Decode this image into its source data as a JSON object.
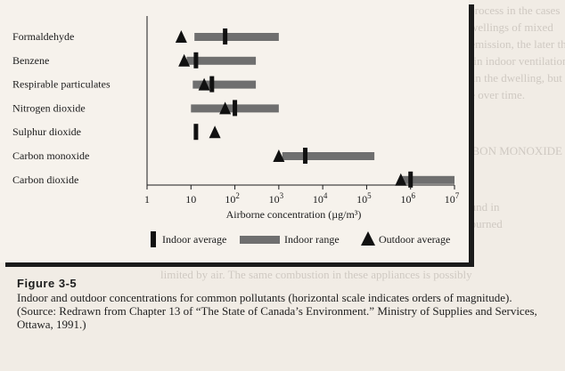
{
  "chart_data": {
    "type": "range-bar",
    "scale": "log",
    "xlabel": "Airborne concentration (µg/m³)",
    "xticks": [
      {
        "value": 1,
        "label": "1"
      },
      {
        "value": 10,
        "label": "10"
      },
      {
        "value": 100,
        "label": "10",
        "exp": "2"
      },
      {
        "value": 1000,
        "label": "10",
        "exp": "3"
      },
      {
        "value": 10000,
        "label": "10",
        "exp": "4"
      },
      {
        "value": 100000,
        "label": "10",
        "exp": "5"
      },
      {
        "value": 1000000,
        "label": "10",
        "exp": "6"
      },
      {
        "value": 10000000,
        "label": "10",
        "exp": "7"
      }
    ],
    "xlim": [
      1,
      10000000
    ],
    "pollutants": [
      {
        "name": "Formaldehyde",
        "indoor_range": [
          12,
          1000
        ],
        "indoor_average": 60,
        "outdoor_average": 6
      },
      {
        "name": "Benzene",
        "indoor_range": [
          8,
          300
        ],
        "indoor_average": 13,
        "outdoor_average": 7
      },
      {
        "name": "Respirable particulates",
        "indoor_range": [
          11,
          300
        ],
        "indoor_average": 30,
        "outdoor_average": 20
      },
      {
        "name": "Nitrogen dioxide",
        "indoor_range": [
          10,
          1000
        ],
        "indoor_average": 100,
        "outdoor_average": 60
      },
      {
        "name": "Sulphur dioxide",
        "indoor_range": null,
        "indoor_average": 13,
        "outdoor_average": 35
      },
      {
        "name": "Carbon monoxide",
        "indoor_range": [
          1200,
          150000
        ],
        "indoor_average": 4000,
        "outdoor_average": 1000
      },
      {
        "name": "Carbon dioxide",
        "indoor_range": [
          600000,
          10000000
        ],
        "indoor_average": 1000000,
        "outdoor_average": 600000
      }
    ],
    "legend": {
      "placement": "bottom",
      "items": [
        {
          "key": "indoor_average",
          "label": "Indoor average"
        },
        {
          "key": "indoor_range",
          "label": "Indoor range"
        },
        {
          "key": "outdoor_average",
          "label": "Outdoor average"
        }
      ]
    },
    "colors": {
      "range": "#6f6f6f",
      "marker": "#111111"
    }
  },
  "caption": {
    "label": "Figure 3-5",
    "text": "Indoor and outdoor concentrations for common pollutants (horizontal scale indicates orders of magnitude). (Source: Redrawn from Chapter 13 of “The State of Canada’s Environment.” Ministry of Supplies and Services, Ottawa, 1991.)"
  }
}
